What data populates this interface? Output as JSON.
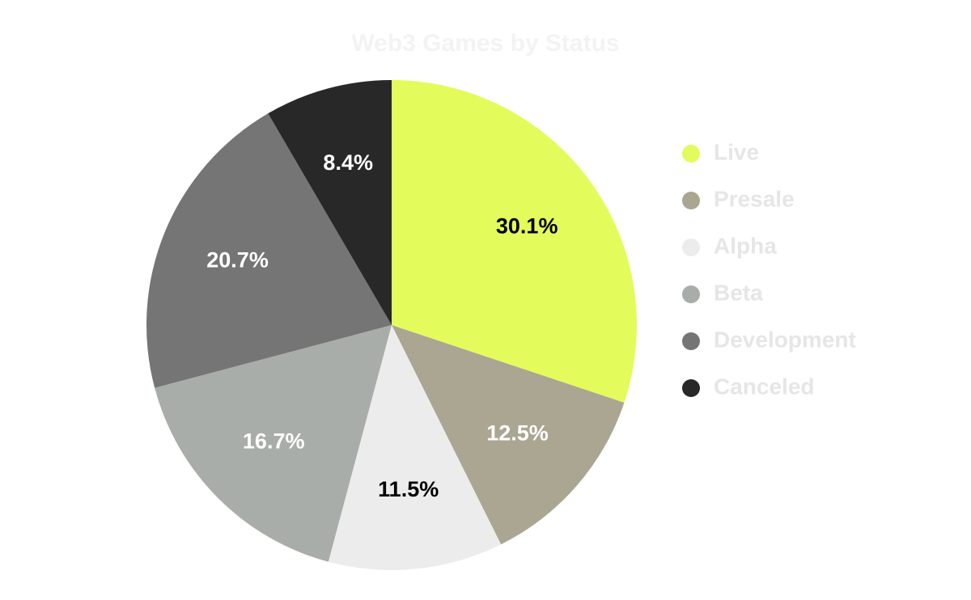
{
  "chart_data": {
    "type": "pie",
    "title": "Web3 Games by Status",
    "categories": [
      "Live",
      "Presale",
      "Alpha",
      "Beta",
      "Development",
      "Canceled"
    ],
    "values": [
      30.1,
      12.5,
      11.5,
      16.7,
      20.7,
      8.4
    ],
    "value_labels": [
      "30.1%",
      "12.5%",
      "11.5%",
      "16.7%",
      "20.7%",
      "8.4%"
    ],
    "colors": [
      "#e4fb5c",
      "#aaa691",
      "#ececec",
      "#a9ada9",
      "#757575",
      "#282828"
    ],
    "legend": "right"
  }
}
